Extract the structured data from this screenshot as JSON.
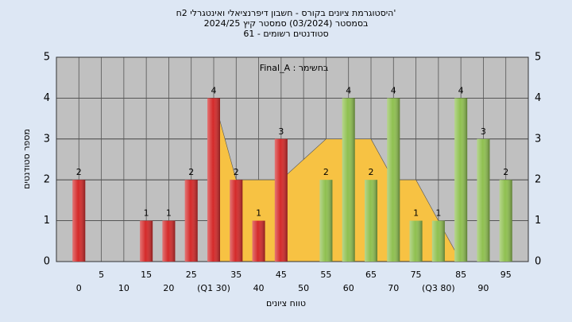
{
  "chart_data": {
    "type": "bar",
    "title_lines": [
      "היסטוגרמת ציונים בקורס - חשבון דיפרנציאלי ואינטגרלי 2ח'",
      "בסמסטר (03/2024) סמסטר קיץ 2024/25",
      "סטודנטים רשומים - 61"
    ],
    "annotation": "Final_A : בחשימר",
    "y_label": "מספר סטודנטים",
    "x_label": "טווח ציונים",
    "x": [
      0,
      5,
      10,
      15,
      20,
      25,
      30,
      35,
      40,
      45,
      50,
      55,
      60,
      65,
      70,
      75,
      80,
      85,
      90,
      95
    ],
    "values": [
      2,
      0,
      0,
      1,
      1,
      2,
      4,
      2,
      1,
      3,
      0,
      2,
      4,
      2,
      4,
      1,
      1,
      4,
      3,
      2
    ],
    "colors": [
      "#d42a2a",
      "#d42a2a",
      "#d42a2a",
      "#d42a2a",
      "#d42a2a",
      "#d42a2a",
      "#d42a2a",
      "#d42a2a",
      "#d42a2a",
      "#d42a2a",
      "#d42a2a",
      "#8fc050",
      "#8fc050",
      "#8fc050",
      "#8fc050",
      "#8fc050",
      "#8fc050",
      "#8fc050",
      "#8fc050",
      "#8fc050"
    ],
    "area": {
      "color": "#f7c243",
      "x": [
        30,
        35,
        40,
        45,
        50,
        55,
        60,
        65,
        70,
        75,
        80,
        85
      ],
      "values": [
        4,
        2,
        2,
        2,
        2.5,
        3,
        3,
        3,
        2,
        2,
        1,
        0
      ]
    },
    "xlim": [
      -5,
      100
    ],
    "ylim": [
      0,
      5
    ],
    "xticks": [
      0,
      5,
      10,
      15,
      20,
      25,
      {
        "value": 30,
        "label": "(Q1 30)"
      },
      35,
      40,
      45,
      50,
      55,
      60,
      65,
      70,
      75,
      {
        "value": 80,
        "label": "(Q3 80)"
      },
      85,
      90,
      95
    ],
    "yticks": [
      0,
      1,
      2,
      3,
      4,
      5
    ],
    "grid": true
  }
}
